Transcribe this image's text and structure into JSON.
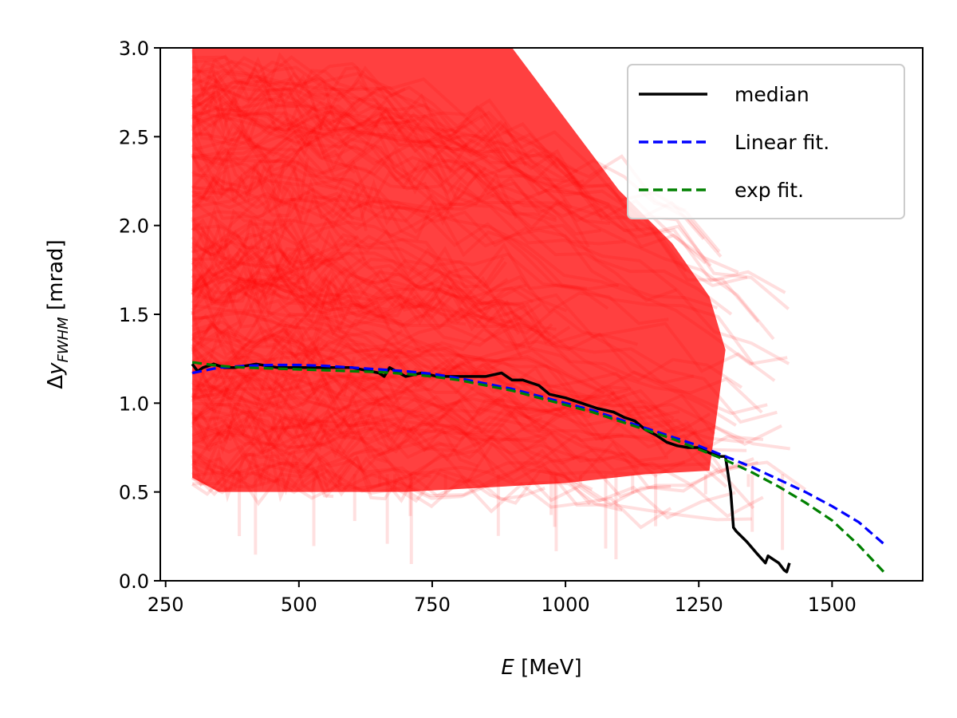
{
  "chart_data": {
    "type": "line",
    "xlabel": "E [MeV]",
    "ylabel": "Δy_{FWHM} [mrad]",
    "xlim": [
      240,
      1670
    ],
    "ylim": [
      0,
      3.0
    ],
    "x_ticks": [
      250,
      500,
      750,
      1000,
      1250,
      1500
    ],
    "x_tick_labels": [
      "250",
      "500",
      "750",
      "1000",
      "1250",
      "1500"
    ],
    "y_ticks": [
      0.0,
      0.5,
      1.0,
      1.5,
      2.0,
      2.5,
      3.0
    ],
    "y_tick_labels": [
      "0.0",
      "0.5",
      "1.0",
      "1.5",
      "2.0",
      "2.5",
      "3.0"
    ],
    "grid": false,
    "legend_position": "upper right",
    "band": {
      "color": "#ff0000",
      "description_points": {
        "upper": [
          [
            300,
            3.0
          ],
          [
            900,
            3.0
          ],
          [
            1000,
            2.6
          ],
          [
            1100,
            2.2
          ],
          [
            1200,
            1.9
          ],
          [
            1270,
            1.6
          ],
          [
            1300,
            1.3
          ]
        ],
        "lower": [
          [
            300,
            0.58
          ],
          [
            350,
            0.5
          ],
          [
            700,
            0.5
          ],
          [
            1000,
            0.55
          ],
          [
            1150,
            0.6
          ],
          [
            1270,
            0.62
          ],
          [
            1300,
            1.3
          ]
        ]
      }
    },
    "series": [
      {
        "name": "median",
        "color": "#000000",
        "style": "solid",
        "x": [
          300,
          310,
          320,
          340,
          360,
          380,
          420,
          460,
          500,
          540,
          600,
          650,
          660,
          670,
          700,
          730,
          760,
          800,
          850,
          880,
          900,
          920,
          950,
          970,
          1000,
          1030,
          1060,
          1090,
          1110,
          1130,
          1150,
          1170,
          1190,
          1210,
          1230,
          1250,
          1270,
          1290,
          1300,
          1305,
          1310,
          1315,
          1320,
          1340,
          1360,
          1375,
          1380,
          1390,
          1400,
          1410,
          1415,
          1420
        ],
        "y": [
          1.22,
          1.18,
          1.2,
          1.22,
          1.2,
          1.2,
          1.22,
          1.2,
          1.2,
          1.2,
          1.2,
          1.17,
          1.15,
          1.2,
          1.15,
          1.17,
          1.15,
          1.15,
          1.15,
          1.17,
          1.13,
          1.13,
          1.1,
          1.05,
          1.03,
          1.0,
          0.97,
          0.95,
          0.92,
          0.9,
          0.85,
          0.82,
          0.78,
          0.76,
          0.75,
          0.75,
          0.72,
          0.7,
          0.7,
          0.6,
          0.5,
          0.3,
          0.28,
          0.22,
          0.15,
          0.1,
          0.14,
          0.12,
          0.1,
          0.06,
          0.05,
          0.1
        ]
      },
      {
        "name": "Linear fit.",
        "color": "#0000ff",
        "style": "dashed",
        "x": [
          300,
          350,
          400,
          450,
          500,
          550,
          600,
          650,
          700,
          750,
          800,
          850,
          900,
          950,
          1000,
          1050,
          1100,
          1150,
          1200,
          1250,
          1300,
          1350,
          1400,
          1450,
          1500,
          1550,
          1600
        ],
        "y": [
          1.17,
          1.2,
          1.21,
          1.215,
          1.215,
          1.21,
          1.2,
          1.19,
          1.18,
          1.165,
          1.14,
          1.11,
          1.08,
          1.04,
          1.0,
          0.96,
          0.91,
          0.86,
          0.81,
          0.76,
          0.7,
          0.64,
          0.57,
          0.5,
          0.42,
          0.33,
          0.2
        ]
      },
      {
        "name": "exp fit.",
        "color": "#008000",
        "style": "dashed",
        "x": [
          300,
          350,
          400,
          450,
          500,
          550,
          600,
          650,
          700,
          750,
          800,
          850,
          900,
          950,
          1000,
          1050,
          1100,
          1150,
          1200,
          1250,
          1300,
          1350,
          1400,
          1450,
          1500,
          1550,
          1600
        ],
        "y": [
          1.23,
          1.21,
          1.2,
          1.195,
          1.19,
          1.185,
          1.18,
          1.175,
          1.165,
          1.15,
          1.13,
          1.1,
          1.07,
          1.03,
          0.99,
          0.95,
          0.9,
          0.85,
          0.8,
          0.74,
          0.68,
          0.61,
          0.53,
          0.44,
          0.34,
          0.2,
          0.04
        ]
      }
    ],
    "legend": [
      {
        "label": "median",
        "color": "#000000",
        "style": "solid"
      },
      {
        "label": "Linear fit.",
        "color": "#0000ff",
        "style": "dashed"
      },
      {
        "label": "exp fit.",
        "color": "#008000",
        "style": "dashed"
      }
    ]
  }
}
